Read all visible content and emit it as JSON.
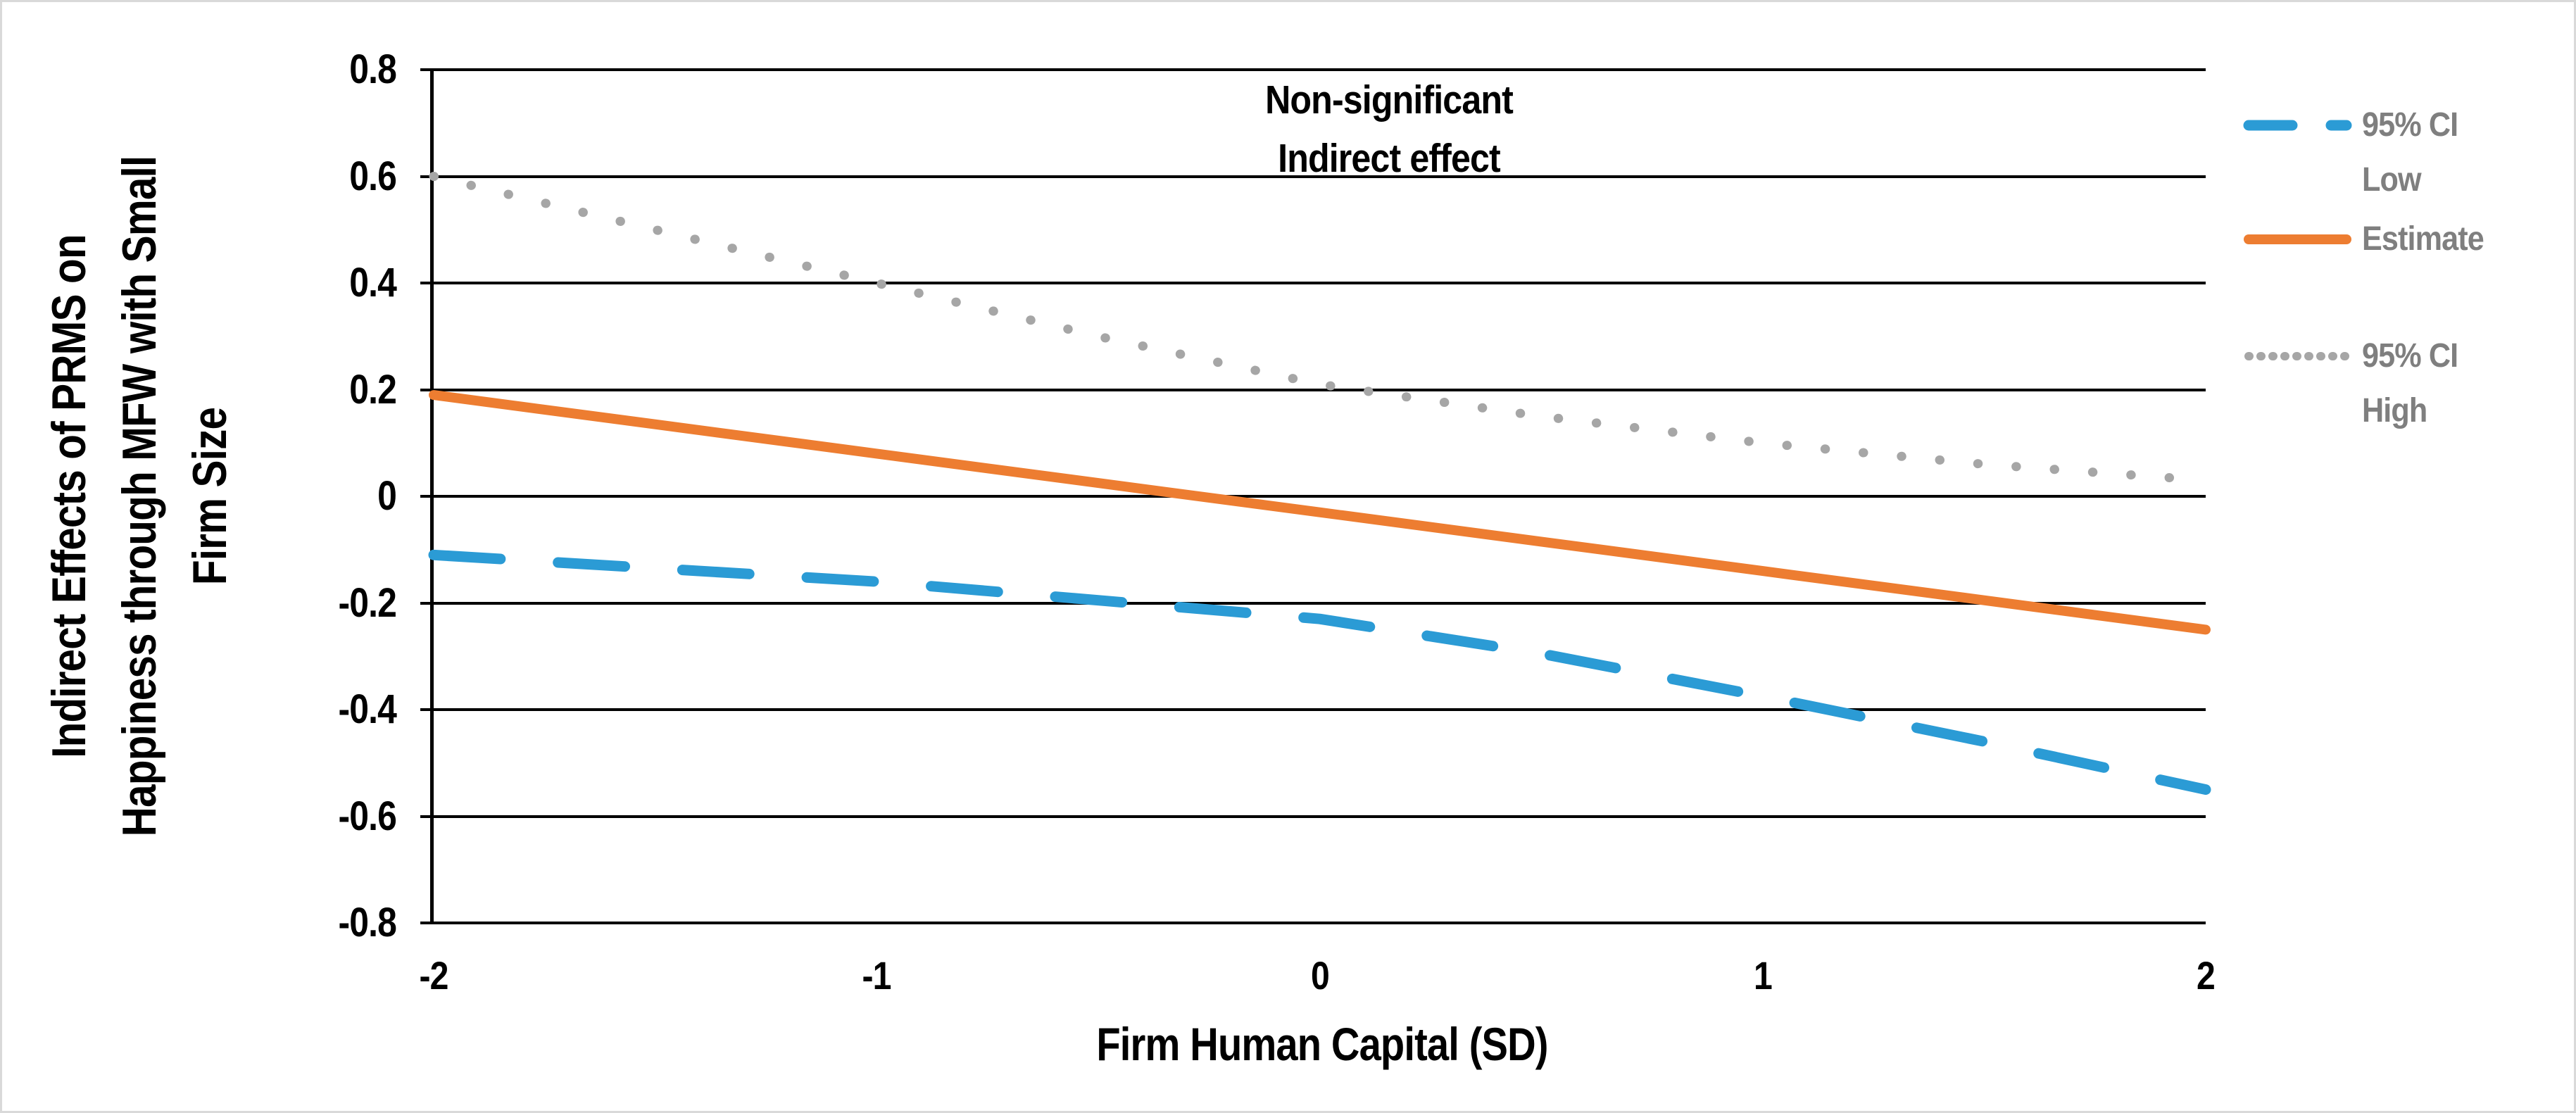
{
  "figure": {
    "background": "#FFFFFF",
    "border_color": "#D9D9D9"
  },
  "chart_data": {
    "type": "line",
    "title": "",
    "xlabel": "Firm Human Capital (SD)",
    "ylabel": "Indirect Effects of PRMS on Happiness through MFW with Small Firm Size",
    "ylabel_lines": [
      "Indirect Effects of PRMS on",
      "Happiness through MFW with Small",
      "Firm Size"
    ],
    "annotation": {
      "lines": [
        "Non-significant",
        "Indirect effect"
      ]
    },
    "grid": "horizontal-only",
    "x": [
      -2,
      -1.5,
      -1,
      -0.5,
      0,
      0.5,
      1,
      1.5,
      2
    ],
    "series": [
      {
        "id": "ci_low",
        "name": "95% CI Low",
        "color": "#2B9BD5",
        "style": "dashed",
        "values": [
          -0.11,
          -0.135,
          -0.16,
          -0.195,
          -0.23,
          -0.295,
          -0.375,
          -0.46,
          -0.55
        ]
      },
      {
        "id": "estimate",
        "name": "Estimate",
        "color": "#ED7D31",
        "style": "solid",
        "values": [
          0.19,
          0.135,
          0.08,
          0.025,
          -0.03,
          -0.085,
          -0.14,
          -0.195,
          -0.25
        ]
      },
      {
        "id": "ci_high",
        "name": "95% CI High",
        "color": "#A6A6A6",
        "style": "dotted",
        "values": [
          0.6,
          0.5,
          0.4,
          0.3,
          0.21,
          0.15,
          0.1,
          0.06,
          0.03
        ]
      }
    ],
    "x_axis": {
      "range": [
        -2,
        2
      ],
      "tick_values": [
        -2,
        -1,
        0,
        1,
        2
      ],
      "tick_labels": [
        "-2",
        "-1",
        "0",
        "1",
        "2"
      ]
    },
    "y_axis": {
      "range": [
        -0.8,
        0.8
      ],
      "tick_values": [
        0.8,
        0.6,
        0.4,
        0.2,
        0,
        -0.2,
        -0.4,
        -0.6,
        -0.8
      ],
      "tick_labels": [
        "0.8",
        "0.6",
        "0.4",
        "0.2",
        "0",
        "-0.2",
        "-0.4",
        "-0.6",
        "-0.8"
      ]
    },
    "legend": {
      "position": "right",
      "text_color": "#7F7F7F",
      "items": [
        {
          "series": "ci_low",
          "label": "95% CI Low",
          "label_lines": [
            "95% CI",
            "Low"
          ]
        },
        {
          "series": "estimate",
          "label": "Estimate",
          "label_lines": [
            "Estimate"
          ]
        },
        {
          "series": "ci_high",
          "label": "95% CI High",
          "label_lines": [
            "95% CI",
            "High"
          ]
        }
      ]
    }
  }
}
